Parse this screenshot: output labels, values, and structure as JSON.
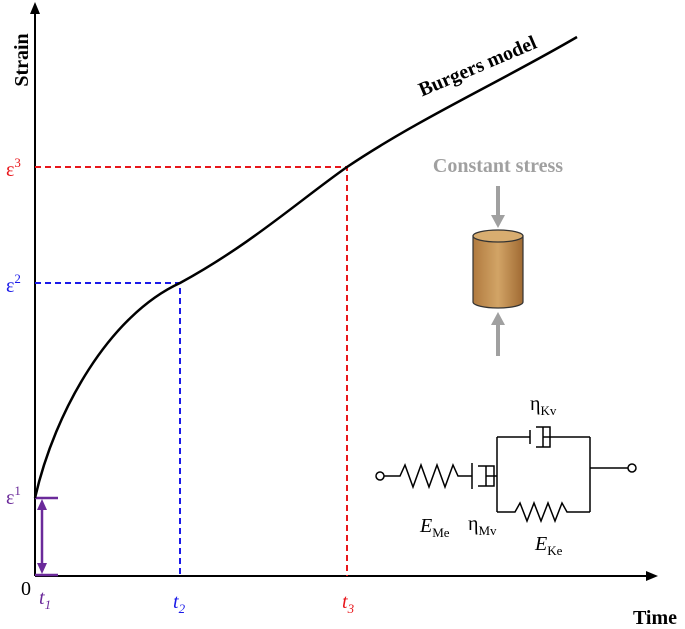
{
  "axes": {
    "y_label": "Strain",
    "x_label": "Time",
    "origin": "0"
  },
  "curve_label": "Burgers model",
  "strain_levels": [
    {
      "base": "ε",
      "sup": "1"
    },
    {
      "base": "ε",
      "sup": "2"
    },
    {
      "base": "ε",
      "sup": "3"
    }
  ],
  "time_points": [
    {
      "base": "t",
      "sub": "1"
    },
    {
      "base": "t",
      "sub": "2"
    },
    {
      "base": "t",
      "sub": "3"
    }
  ],
  "inset": {
    "title": "Constant stress",
    "elements": [
      {
        "base": "E",
        "sub": "Me"
      },
      {
        "base": "η",
        "sub": "Mv"
      },
      {
        "base": "η",
        "sub": "Kv"
      },
      {
        "base": "E",
        "sub": "Ke"
      }
    ]
  }
}
